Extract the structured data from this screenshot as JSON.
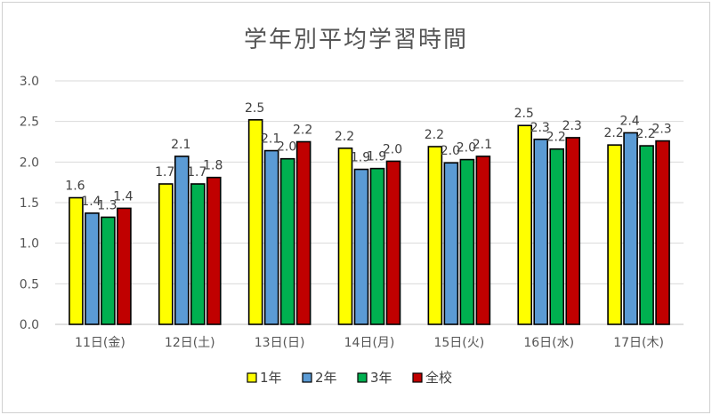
{
  "chart_data": {
    "type": "bar",
    "title": "学年別平均学習時間",
    "categories": [
      "11日(金)",
      "12日(土)",
      "13日(日)",
      "14日(月)",
      "15日(火)",
      "16日(水)",
      "17日(木)"
    ],
    "series": [
      {
        "name": "1年",
        "color": "#ffff00",
        "values": [
          1.56,
          1.73,
          2.52,
          2.17,
          2.19,
          2.45,
          2.21
        ],
        "labels": [
          "1.6",
          "1.7",
          "2.5",
          "2.2",
          "2.2",
          "2.5",
          "2.2"
        ]
      },
      {
        "name": "2年",
        "color": "#5b9bd5",
        "values": [
          1.37,
          2.07,
          2.14,
          1.91,
          1.99,
          2.28,
          2.36
        ],
        "labels": [
          "1.4",
          "2.1",
          "2.1",
          "1.9",
          "2.0",
          "2.3",
          "2.4"
        ]
      },
      {
        "name": "3年",
        "color": "#00b050",
        "values": [
          1.32,
          1.73,
          2.04,
          1.92,
          2.03,
          2.16,
          2.2
        ],
        "labels": [
          "1.3",
          "1.7",
          "2.0",
          "1.9",
          "2.0",
          "2.2",
          "2.2"
        ]
      },
      {
        "name": "全校",
        "color": "#c00000",
        "values": [
          1.43,
          1.81,
          2.25,
          2.01,
          2.07,
          2.3,
          2.26
        ],
        "labels": [
          "1.4",
          "1.8",
          "2.2",
          "2.0",
          "2.1",
          "2.3",
          "2.3"
        ]
      }
    ],
    "ylim": [
      0,
      3.0
    ],
    "yticks": [
      "0.0",
      "0.5",
      "1.0",
      "1.5",
      "2.0",
      "2.5",
      "3.0"
    ],
    "grid": true,
    "legend": "bottom"
  }
}
